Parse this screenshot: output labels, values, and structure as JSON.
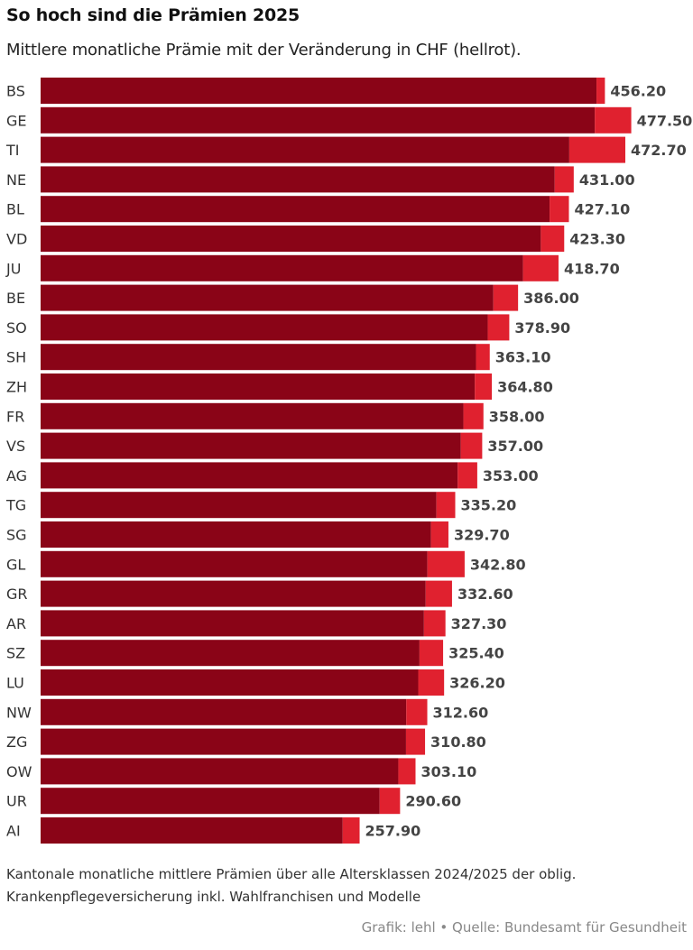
{
  "title": "So hoch sind die Prämien 2025",
  "subtitle": "Mittlere monatliche Prämie mit der Veränderung in CHF (hellrot).",
  "footnote": "Kantonale monatliche mittlere Prämien über alle Altersklassen 2024/2025 der oblig. Krankenpflegeversicherung inkl. Wahlfranchisen und Modelle",
  "source": "Grafik: lehl • Quelle: Bundesamt für Gesundheit",
  "colors": {
    "base": "#8a0417",
    "change": "#e0212f",
    "label": "#444444"
  },
  "chart_data": {
    "type": "bar",
    "orientation": "horizontal",
    "stacked": true,
    "categories": [
      "BS",
      "GE",
      "TI",
      "NE",
      "BL",
      "VD",
      "JU",
      "BE",
      "SO",
      "SH",
      "ZH",
      "FR",
      "VS",
      "AG",
      "TG",
      "SG",
      "GL",
      "GR",
      "AR",
      "SZ",
      "LU",
      "NW",
      "ZG",
      "OW",
      "UR",
      "AI"
    ],
    "totals": [
      456.2,
      477.5,
      472.7,
      431.0,
      427.1,
      423.3,
      418.7,
      386.0,
      378.9,
      363.1,
      364.8,
      358.0,
      357.0,
      353.0,
      335.2,
      329.7,
      342.8,
      332.6,
      327.3,
      325.4,
      326.2,
      312.6,
      310.8,
      303.1,
      290.6,
      257.9
    ],
    "value_labels": [
      "456.20",
      "477.50",
      "472.70",
      "431.00",
      "427.10",
      "423.30",
      "418.70",
      "386.00",
      "378.90",
      "363.10",
      "364.80",
      "358.00",
      "357.00",
      "353.00",
      "335.20",
      "329.70",
      "342.80",
      "332.60",
      "327.30",
      "325.40",
      "326.20",
      "312.60",
      "310.80",
      "303.10",
      "290.60",
      "257.90"
    ],
    "series": [
      {
        "values": [
          449.4,
          448.0,
          427.4,
          415.6,
          411.5,
          404.4,
          390.0,
          366.0,
          361.5,
          352.0,
          351.0,
          341.8,
          339.7,
          337.2,
          320.0,
          315.6,
          312.7,
          311.3,
          309.9,
          306.3,
          305.3,
          295.6,
          295.4,
          289.2,
          274.1,
          244.2
        ]
      },
      {
        "values": [
          6.8,
          29.5,
          45.3,
          15.4,
          15.6,
          18.9,
          28.7,
          20.0,
          17.4,
          11.1,
          13.8,
          16.2,
          17.3,
          15.8,
          15.2,
          14.1,
          30.1,
          21.3,
          17.4,
          19.1,
          20.9,
          17.0,
          15.4,
          13.9,
          16.5,
          13.7
        ]
      }
    ],
    "xlim": [
      0,
      480
    ],
    "grid": false,
    "legend": "none"
  }
}
